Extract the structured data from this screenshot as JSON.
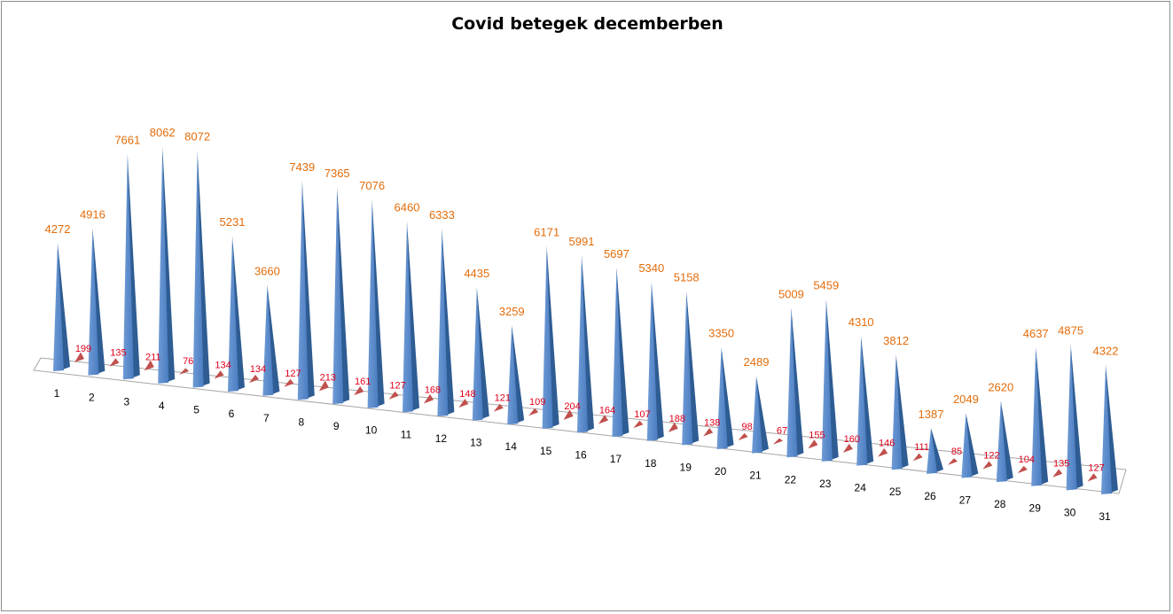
{
  "chart_data": {
    "type": "bar",
    "style": "3d-pyramid",
    "title": "Covid betegek decemberben",
    "xlabel": "",
    "ylabel": "",
    "categories": [
      "1",
      "2",
      "3",
      "4",
      "5",
      "6",
      "7",
      "8",
      "9",
      "10",
      "11",
      "12",
      "13",
      "14",
      "15",
      "16",
      "17",
      "18",
      "19",
      "20",
      "21",
      "22",
      "23",
      "24",
      "25",
      "26",
      "27",
      "28",
      "29",
      "30",
      "31"
    ],
    "series": [
      {
        "color": "#4f81bd",
        "label_color": "#e46c0a",
        "values": [
          4272,
          4916,
          7661,
          8062,
          8072,
          5231,
          3660,
          7439,
          7365,
          7076,
          6460,
          6333,
          4435,
          3259,
          6171,
          5991,
          5697,
          5340,
          5158,
          3350,
          2489,
          5009,
          5459,
          4310,
          3812,
          1387,
          2049,
          2620,
          4637,
          4875,
          4322
        ]
      },
      {
        "color": "#c0504d",
        "label_color": "#e0001b",
        "values": [
          199,
          135,
          211,
          76,
          134,
          134,
          127,
          213,
          161,
          127,
          168,
          148,
          121,
          109,
          204,
          164,
          107,
          188,
          138,
          98,
          67,
          155,
          160,
          146,
          111,
          85,
          122,
          104,
          135,
          127,
          null
        ]
      }
    ],
    "ylim": [
      0,
      8500
    ],
    "grid": false,
    "legend": "none"
  }
}
